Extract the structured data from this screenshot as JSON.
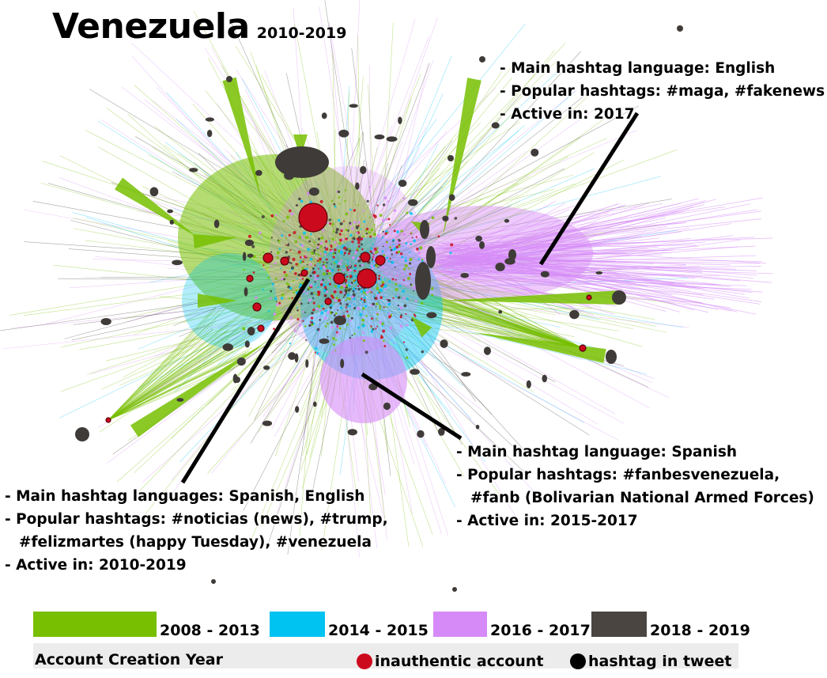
{
  "title": "Venezuela",
  "subtitle": "2010-2019",
  "annotations": {
    "english": {
      "language": "- Main hashtag language: English",
      "hashtags": "- Popular hashtags: #maga, #fakenews",
      "active": "- Active in: 2017"
    },
    "spanish": {
      "language": "- Main hashtag language: Spanish",
      "hashtags_1": "- Popular hashtags: #fanbesvenezuela,",
      "hashtags_2": "#fanb (Bolivarian National Armed Forces)",
      "active": "- Active in: 2015-2017"
    },
    "mixed": {
      "language": "- Main hashtag languages: Spanish, English",
      "hashtags_1": "- Popular hashtags: #noticias (news), #trump,",
      "hashtags_2": "#felizmartes (happy Tuesday), #venezuela",
      "active": "- Active in: 2010-2019"
    }
  },
  "legend": {
    "years": [
      {
        "label": "2008 - 2013",
        "color": "#77bf00"
      },
      {
        "label": "2014 - 2015",
        "color": "#00c3f2"
      },
      {
        "label": "2016 - 2017",
        "color": "#d68af7"
      },
      {
        "label": "2018 - 2019",
        "color": "#4a4541"
      }
    ],
    "footer_title": "Account Creation Year",
    "inauthentic": {
      "label": "inauthentic account",
      "color": "#cc0a1e"
    },
    "hashtag": {
      "label": "hashtag in tweet",
      "color": "#000000"
    }
  },
  "colors": {
    "green": "#77bf00",
    "cyan": "#00c3f2",
    "purple": "#d68af7",
    "dark": "#3f3b38",
    "red": "#cc0a1e"
  }
}
